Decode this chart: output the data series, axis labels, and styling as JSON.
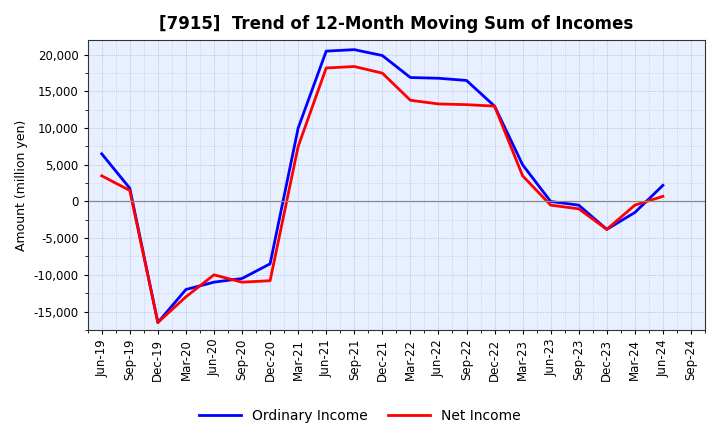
{
  "title": "[7915]  Trend of 12-Month Moving Sum of Incomes",
  "ylabel": "Amount (million yen)",
  "x_labels": [
    "Jun-19",
    "Sep-19",
    "Dec-19",
    "Mar-20",
    "Jun-20",
    "Sep-20",
    "Dec-20",
    "Mar-21",
    "Jun-21",
    "Sep-21",
    "Dec-21",
    "Mar-22",
    "Jun-22",
    "Sep-22",
    "Dec-22",
    "Mar-23",
    "Jun-23",
    "Sep-23",
    "Dec-23",
    "Mar-24",
    "Jun-24",
    "Sep-24"
  ],
  "ordinary_income": [
    6500,
    1800,
    -16500,
    -12000,
    -11000,
    -10500,
    -8500,
    10000,
    20500,
    20700,
    19900,
    16900,
    16800,
    16500,
    13000,
    5000,
    0,
    -500,
    -3800,
    -1500,
    2200,
    null
  ],
  "net_income": [
    3500,
    1500,
    -16500,
    -13000,
    -10000,
    -11000,
    -10800,
    7500,
    18200,
    18400,
    17500,
    13800,
    13300,
    13200,
    13000,
    3500,
    -500,
    -1000,
    -3800,
    -500,
    700,
    null
  ],
  "ordinary_income_color": "#0000FF",
  "net_income_color": "#FF0000",
  "ylim": [
    -17500,
    22000
  ],
  "yticks": [
    -15000,
    -10000,
    -5000,
    0,
    5000,
    10000,
    15000,
    20000
  ],
  "plot_bg_color": "#E8F0FF",
  "fig_bg_color": "#FFFFFF",
  "grid_color": "#6688CC",
  "zero_line_color": "#888888",
  "line_width": 2.0,
  "legend_labels": [
    "Ordinary Income",
    "Net Income"
  ],
  "title_fontsize": 12,
  "axis_fontsize": 9,
  "tick_fontsize": 8.5
}
